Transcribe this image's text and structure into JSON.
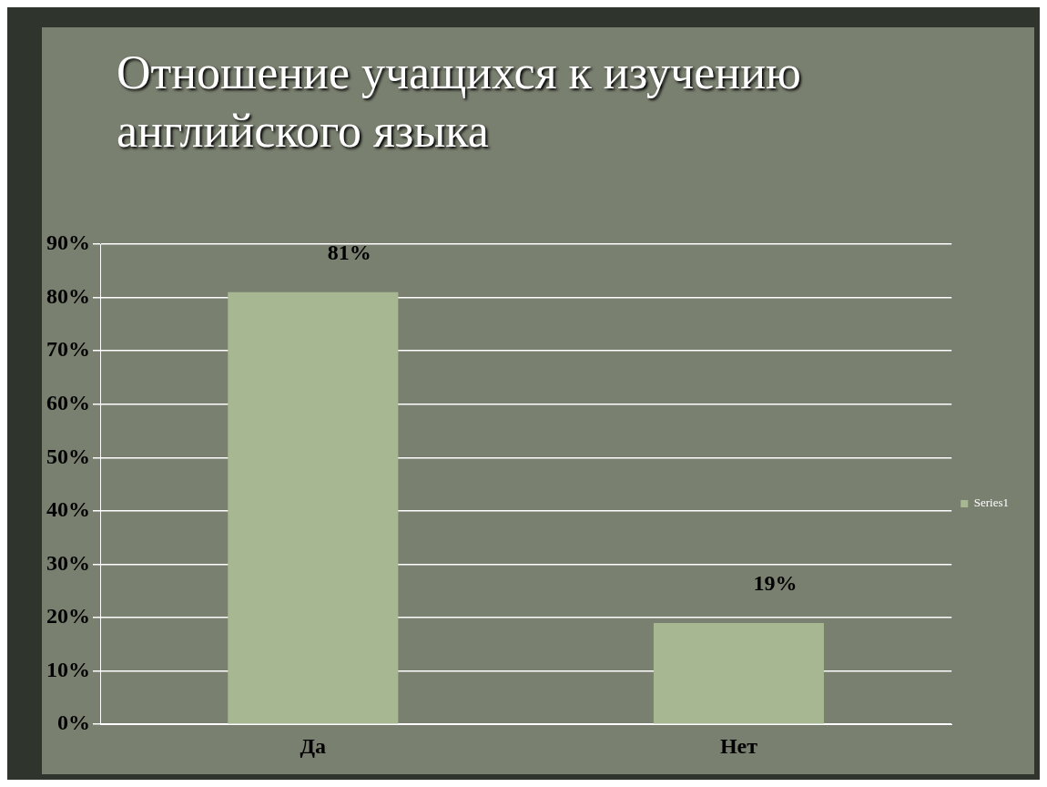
{
  "chart_data": {
    "type": "bar",
    "title": "Отношение учащихся к изучению английского языка",
    "categories": [
      "Да",
      "Нет"
    ],
    "series": [
      {
        "name": "Series1",
        "color": "#a6b791",
        "values": [
          81,
          19
        ],
        "value_labels": [
          "81%",
          "19%"
        ]
      }
    ],
    "ylim": [
      0,
      90
    ],
    "yticks": [
      {
        "value": 0,
        "label": "0%"
      },
      {
        "value": 10,
        "label": "10%"
      },
      {
        "value": 20,
        "label": "20%"
      },
      {
        "value": 30,
        "label": "30%"
      },
      {
        "value": 40,
        "label": "40%"
      },
      {
        "value": 50,
        "label": "50%"
      },
      {
        "value": 60,
        "label": "60%"
      },
      {
        "value": 70,
        "label": "70%"
      },
      {
        "value": 80,
        "label": "80%"
      },
      {
        "value": 90,
        "label": "90%"
      }
    ],
    "grid": "y",
    "legend": "right"
  }
}
